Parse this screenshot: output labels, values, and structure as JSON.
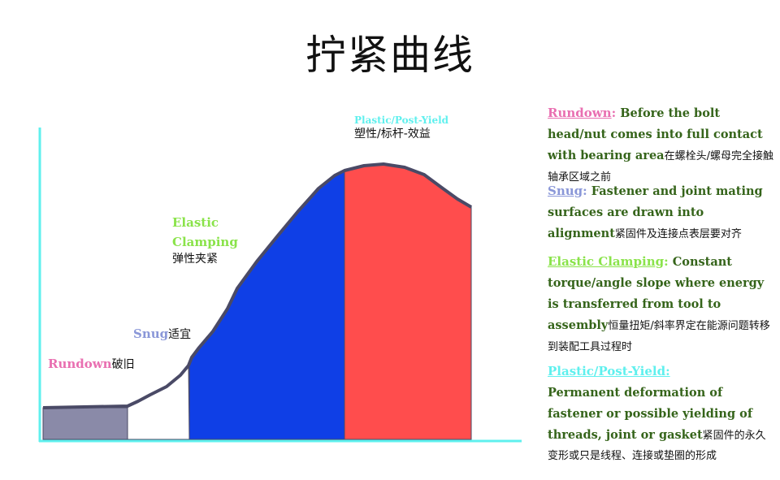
{
  "title": "拧紧曲线",
  "stages": {
    "rundown": {
      "en": "Rundown",
      "cn": "破旧",
      "color": "#e96fb1"
    },
    "snug": {
      "en": "Snug",
      "cn": "适宜",
      "color": "#8a97d8"
    },
    "elastic": {
      "en_line1": "Elastic",
      "en_line2": "Clamping",
      "cn": "弹性夹紧",
      "color": "#8ae34a"
    },
    "plastic": {
      "en": "Plastic/Post-Yield",
      "cn": "塑性/标杆-效益",
      "color": "#5ff0ee"
    }
  },
  "region_colors": {
    "rundown_fill": "#8a8aa8",
    "elastic_fill": "#0f3fe6",
    "plastic_fill": "#ff4d4d",
    "axis": "#5ff0ee",
    "curve": "#4a4a66"
  },
  "descriptions": {
    "rundown": {
      "term": "Rundown",
      "sep": ":",
      "en": "Before the bolt head/nut comes into full contact with bearing area",
      "cn": "在螺栓头/螺母完全接触轴承区域之前"
    },
    "snug": {
      "term": "Snug",
      "sep": ":",
      "en": "Fastener and joint mating surfaces are drawn into alignment",
      "cn": "紧固件及连接点表层要对齐"
    },
    "elastic": {
      "term": "Elastic Clamping",
      "sep": ":",
      "en": "Constant torque/angle slope where energy is transferred from tool to assembly",
      "cn": "恒量扭矩/斜率界定在能源问题转移到装配工具过程时"
    },
    "plastic": {
      "term": "Plastic/Post-Yield:",
      "en": "Permanent deformation of fastener or possible yielding of threads, joint or gasket",
      "cn": "紧固件的永久变形或只是线程、连接或垫圈的形成"
    }
  }
}
